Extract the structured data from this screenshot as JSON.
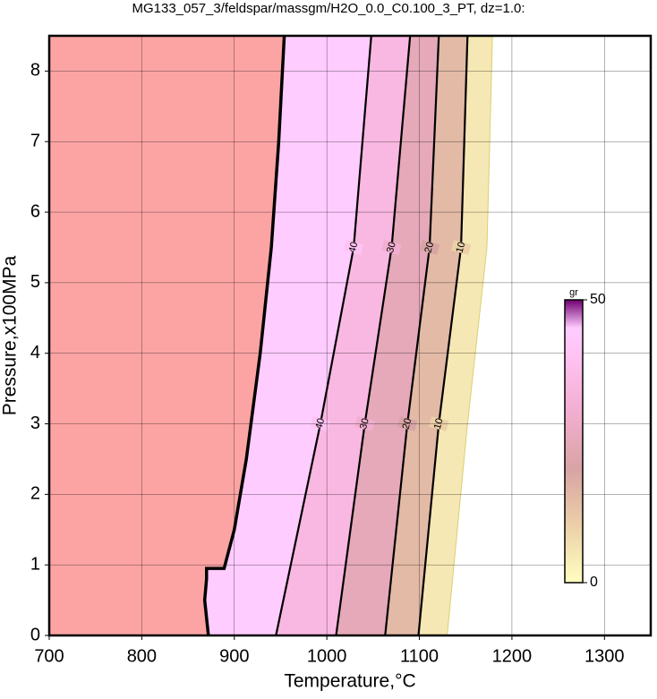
{
  "chart_data": {
    "type": "contour",
    "title": "MG133_057_3/feldspar/massgm/H2O_0.0_C0.100_3_PT, dz=1.0:",
    "x_label": "Temperature,°C",
    "y_label": "Pressure,x100MPa",
    "xlim": [
      700,
      1350
    ],
    "ylim": [
      0,
      8.5
    ],
    "xticks": [
      700,
      800,
      900,
      1000,
      1100,
      1200,
      1300
    ],
    "yticks": [
      0,
      1,
      2,
      3,
      4,
      5,
      6,
      7,
      8
    ],
    "grid": true,
    "outside_color": "#fca4a4",
    "colormap": [
      [
        0,
        "#ffffc0"
      ],
      [
        10,
        "#ecd0a8"
      ],
      [
        20,
        "#d8a4a4"
      ],
      [
        30,
        "#f2aed0"
      ],
      [
        40,
        "#ffc2f2"
      ],
      [
        45,
        "#ffccff"
      ],
      [
        50,
        "#700070"
      ]
    ],
    "boundary": {
      "x": [
        954,
        948,
        940,
        928,
        913,
        900,
        889,
        870,
        870,
        868,
        872
      ],
      "y": [
        8.5,
        7,
        5.5,
        4,
        2.5,
        1.5,
        0.95,
        0.95,
        0.8,
        0.5,
        0
      ]
    },
    "contours": [
      {
        "level": 40,
        "x": [
          1048,
          1029,
          993,
          945
        ],
        "y": [
          8.5,
          5.5,
          3,
          0
        ]
      },
      {
        "level": 30,
        "x": [
          1090,
          1070,
          1041,
          1010
        ],
        "y": [
          8.5,
          5.5,
          3,
          0
        ]
      },
      {
        "level": 20,
        "x": [
          1121,
          1111,
          1087,
          1063
        ],
        "y": [
          8.5,
          5.5,
          3,
          0
        ]
      },
      {
        "level": 10,
        "x": [
          1152,
          1145,
          1121,
          1099
        ],
        "y": [
          8.5,
          5.5,
          3,
          0
        ]
      }
    ],
    "zero_edge": {
      "x": [
        1179,
        1173,
        1152,
        1130
      ],
      "y": [
        8.5,
        5.5,
        3,
        0
      ]
    },
    "colorbar": {
      "label": "gr",
      "lim": [
        0,
        50
      ],
      "ticks": [
        0,
        50
      ]
    }
  }
}
